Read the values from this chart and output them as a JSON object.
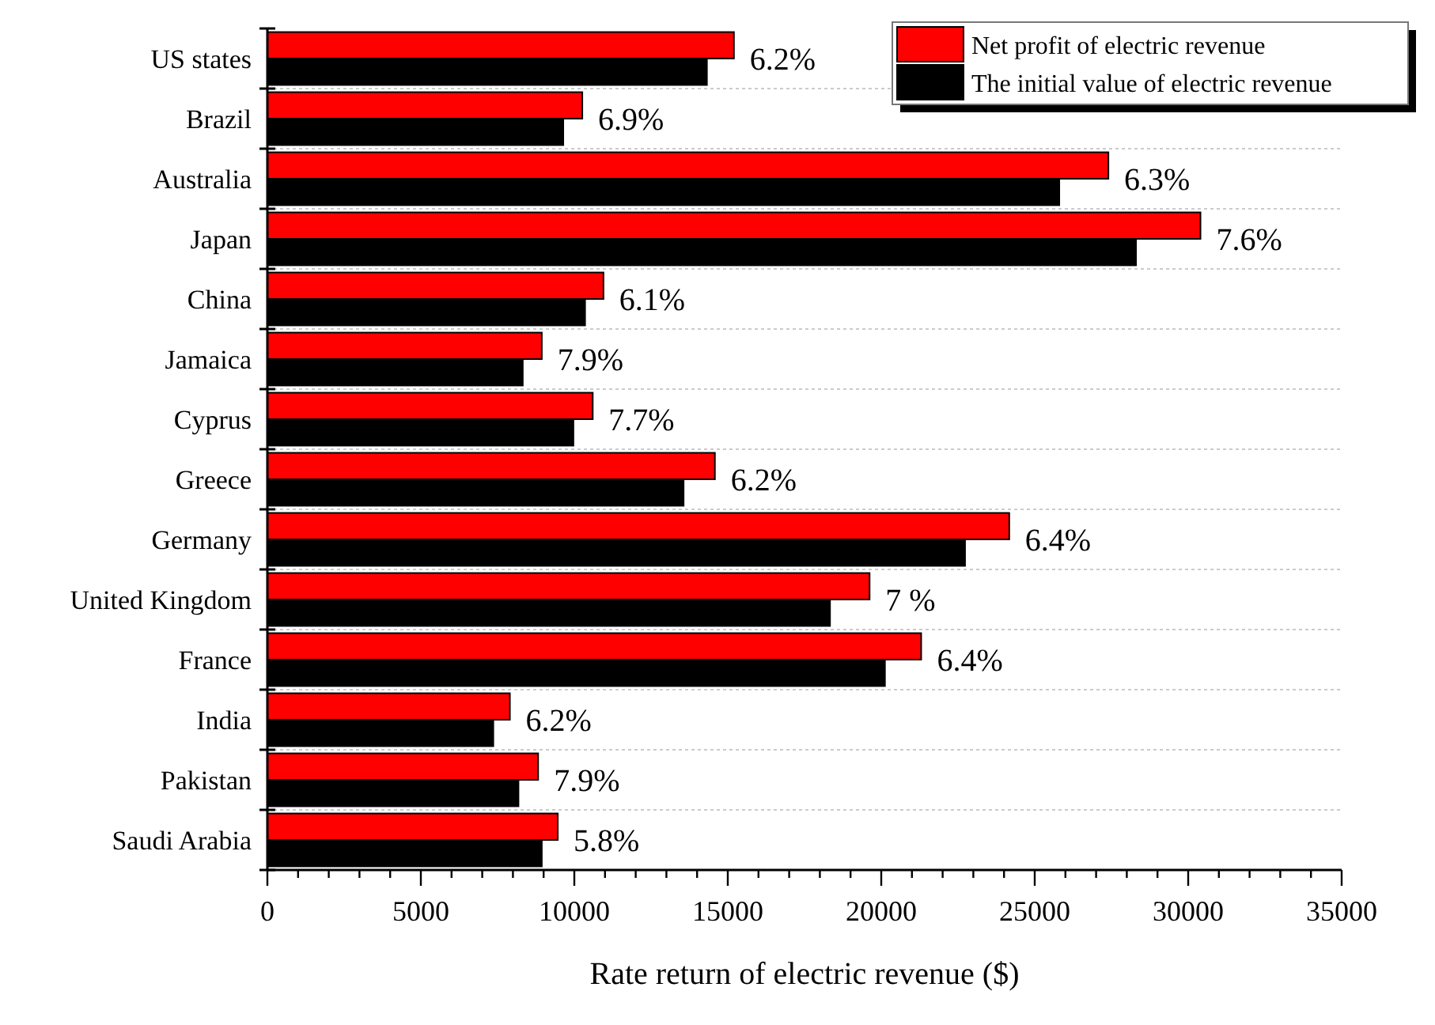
{
  "chart_data": {
    "type": "bar",
    "orientation": "horizontal",
    "xlabel": "Rate return of electric revenue ($)",
    "categories": [
      "US states",
      "Brazil",
      "Australia",
      "Japan",
      "China",
      "Jamaica",
      "Cyprus",
      "Greece",
      "Germany",
      "United Kingdom",
      "France",
      "India",
      "Pakistan",
      "Saudi Arabia"
    ],
    "series": [
      {
        "name": "Net profit of electric revenue",
        "color": "#ff0000",
        "values": [
          15200,
          10260,
          27400,
          30400,
          10950,
          8940,
          10600,
          14580,
          24170,
          19620,
          21300,
          7900,
          8820,
          9460
        ]
      },
      {
        "name": "The initial value of electric revenue",
        "color": "#000000",
        "values": [
          14320,
          9640,
          25800,
          28300,
          10350,
          8320,
          9970,
          13560,
          22730,
          18330,
          20120,
          7360,
          8180,
          8940
        ]
      }
    ],
    "xlim": [
      0,
      35000
    ],
    "xticks": [
      0,
      {
        "value": 1000,
        "label": null
      },
      {
        "value": 2000,
        "label": null
      },
      {
        "value": 3000,
        "label": null
      },
      {
        "value": 4000,
        "label": null
      },
      5000,
      {
        "value": 6000,
        "label": null
      },
      {
        "value": 7000,
        "label": null
      },
      {
        "value": 8000,
        "label": null
      },
      {
        "value": 9000,
        "label": null
      },
      10000,
      {
        "value": 11000,
        "label": null
      },
      {
        "value": 12000,
        "label": null
      },
      {
        "value": 13000,
        "label": null
      },
      {
        "value": 14000,
        "label": null
      },
      15000,
      {
        "value": 16000,
        "label": null
      },
      {
        "value": 17000,
        "label": null
      },
      {
        "value": 18000,
        "label": null
      },
      {
        "value": 19000,
        "label": null
      },
      20000,
      {
        "value": 21000,
        "label": null
      },
      {
        "value": 22000,
        "label": null
      },
      {
        "value": 23000,
        "label": null
      },
      {
        "value": 24000,
        "label": null
      },
      25000,
      {
        "value": 26000,
        "label": null
      },
      {
        "value": 27000,
        "label": null
      },
      {
        "value": 28000,
        "label": null
      },
      {
        "value": 29000,
        "label": null
      },
      30000,
      {
        "value": 31000,
        "label": null
      },
      {
        "value": 32000,
        "label": null
      },
      {
        "value": 33000,
        "label": null
      },
      {
        "value": 34000,
        "label": null
      },
      35000
    ],
    "annotations": [
      {
        "text": "6.2%",
        "x": 15200,
        "y": "US states"
      },
      {
        "text": "6.9%",
        "x": 10260,
        "y": "Brazil"
      },
      {
        "text": "6.3%",
        "x": 27400,
        "y": "Australia"
      },
      {
        "text": "7.6%",
        "x": 30400,
        "y": "Japan"
      },
      {
        "text": "6.1%",
        "x": 10950,
        "y": "China"
      },
      {
        "text": "7.9%",
        "x": 8940,
        "y": "Jamaica"
      },
      {
        "text": "7.7%",
        "x": 10600,
        "y": "Cyprus"
      },
      {
        "text": "6.2%",
        "x": 14580,
        "y": "Greece"
      },
      {
        "text": "6.4%",
        "x": 24170,
        "y": "Germany"
      },
      {
        "text": "7 %",
        "x": 19620,
        "y": "United Kingdom"
      },
      {
        "text": "6.4%",
        "x": 21300,
        "y": "France"
      },
      {
        "text": "6.2%",
        "x": 7900,
        "y": "India"
      },
      {
        "text": "7.9%",
        "x": 8820,
        "y": "Pakistan"
      },
      {
        "text": "5.8%",
        "x": 9460,
        "y": "Saudi Arabia"
      }
    ],
    "grid": "y",
    "legend": "top right"
  }
}
